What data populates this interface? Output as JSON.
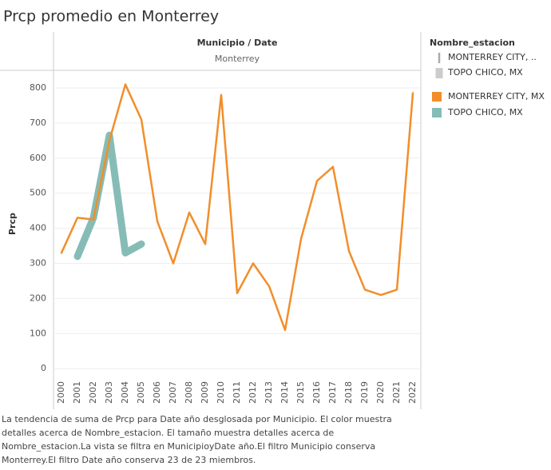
{
  "chart_data": {
    "type": "line",
    "title": "Prcp promedio en Monterrey",
    "header": "Municipio / Date",
    "panel": "Monterrey",
    "y_label": "Prcp",
    "categories": [
      "2000",
      "2001",
      "2002",
      "2003",
      "2004",
      "2005",
      "2006",
      "2007",
      "2008",
      "2009",
      "2010",
      "2011",
      "2012",
      "2013",
      "2014",
      "2015",
      "2016",
      "2017",
      "2018",
      "2019",
      "2020",
      "2021",
      "2022"
    ],
    "series": [
      {
        "name": "MONTERREY CITY, MX",
        "color": "#f28e2b",
        "width": 2.5,
        "values": [
          330,
          430,
          425,
          650,
          810,
          710,
          420,
          300,
          445,
          355,
          780,
          215,
          300,
          235,
          110,
          370,
          535,
          575,
          335,
          225,
          210,
          225,
          785
        ]
      },
      {
        "name": "TOPO CHICO, MX",
        "color": "#86bcb6",
        "width": 9,
        "values": [
          null,
          320,
          430,
          665,
          330,
          355,
          null,
          null,
          null,
          null,
          null,
          null,
          null,
          null,
          null,
          null,
          null,
          null,
          null,
          null,
          null,
          null,
          null
        ]
      }
    ],
    "ylim": [
      -20,
      850
    ],
    "yticks": [
      0,
      100,
      200,
      300,
      400,
      500,
      600,
      700,
      800
    ],
    "grid": true,
    "legend_title": "Nombre_estacion",
    "size_legend": [
      "MONTERREY CITY, ..",
      "TOPO CHICO, MX"
    ],
    "caption": [
      "La tendencia de suma de Prcp para Date año desglosada por Municipio. El color muestra",
      "detalles acerca de Nombre_estacion. El tamaño muestra detalles acerca de",
      "Nombre_estacion.La vista se filtra en MunicipioyDate año.El filtro Municipio conserva",
      "Monterrey.El filtro Date año conserva 23 de 23 miembros."
    ]
  }
}
